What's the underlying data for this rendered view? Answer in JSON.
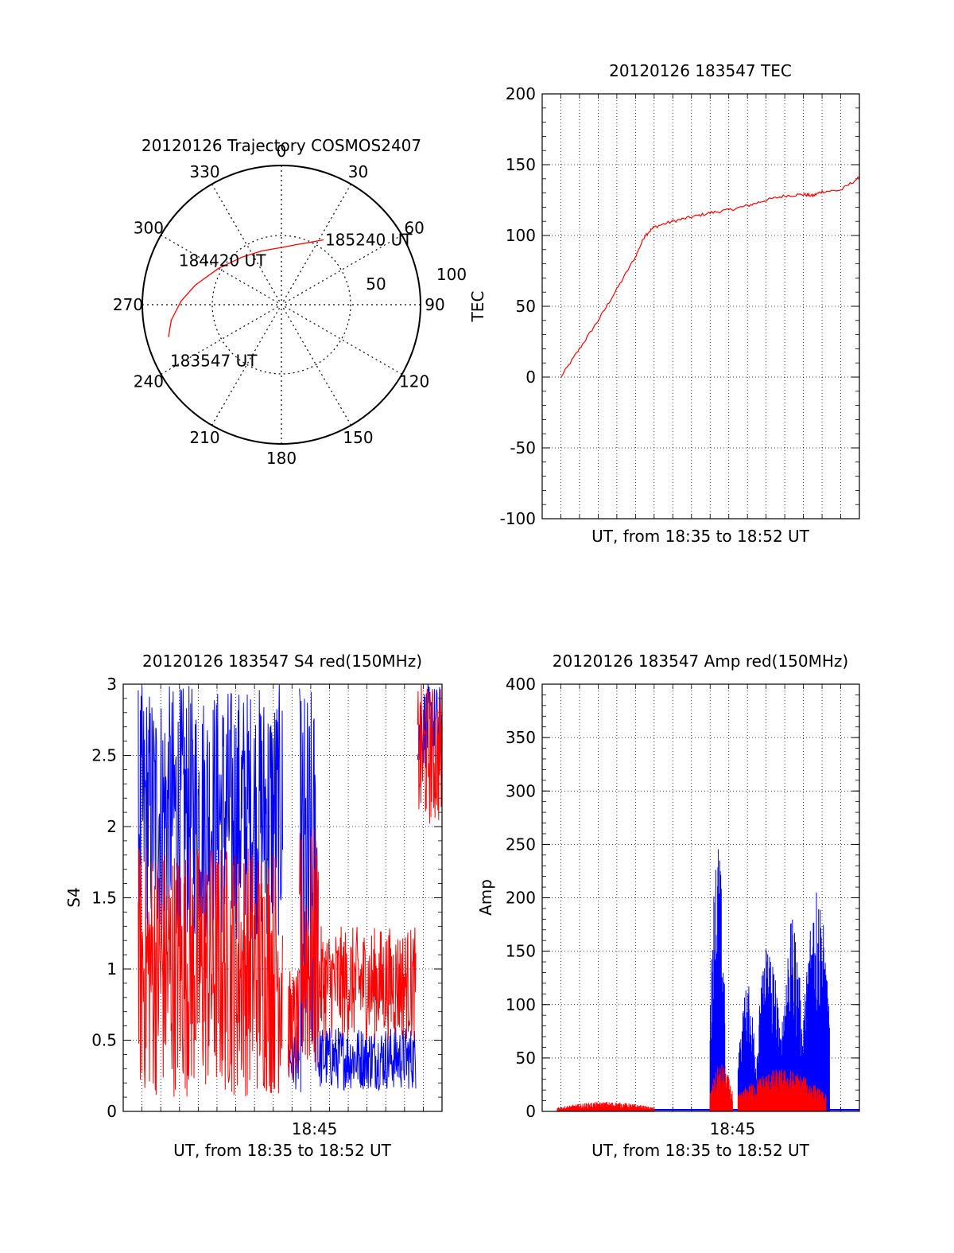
{
  "colors": {
    "series_red": "#ff0000",
    "series_blue": "#0000ff",
    "axis": "#000000",
    "grid": "#000000"
  },
  "chart_data": [
    {
      "type": "polar",
      "title": "20120126 Trajectory COSMOS2407",
      "azimuth_labels": [
        "0",
        "30",
        "60",
        "90",
        "120",
        "150",
        "180",
        "210",
        "240",
        "270",
        "300",
        "330"
      ],
      "radial_labels": [
        "50",
        "100"
      ],
      "trajectory": {
        "points": [
          {
            "azimuth": 254,
            "elevation": 14
          },
          {
            "azimuth": 262,
            "elevation": 18
          },
          {
            "azimuth": 272,
            "elevation": 25
          },
          {
            "azimuth": 283,
            "elevation": 33
          },
          {
            "azimuth": 300,
            "elevation": 43
          },
          {
            "azimuth": 320,
            "elevation": 50
          },
          {
            "azimuth": 340,
            "elevation": 53
          },
          {
            "azimuth": 0,
            "elevation": 53
          },
          {
            "azimuth": 14,
            "elevation": 50
          },
          {
            "azimuth": 24,
            "elevation": 46
          },
          {
            "azimuth": 33,
            "elevation": 40
          }
        ],
        "labels": [
          {
            "text": "183547 UT",
            "at": 0
          },
          {
            "text": "184420 UT",
            "at": 4
          },
          {
            "text": "185240 UT",
            "at": 10
          }
        ]
      }
    },
    {
      "type": "line",
      "title": "20120126 183547 TEC",
      "xlabel": "UT, from 18:35 to 18:52 UT",
      "ylabel": "TEC",
      "ylim": [
        -100,
        200
      ],
      "yticks": [
        "-100",
        "-50",
        "0",
        "50",
        "100",
        "150",
        "200"
      ],
      "xlim": [
        0,
        17.0
      ],
      "grid": true,
      "series": [
        {
          "color": "red",
          "points": [
            [
              1.0,
              0
            ],
            [
              2.0,
              20
            ],
            [
              3.0,
              40
            ],
            [
              4.0,
              62
            ],
            [
              5.0,
              85
            ],
            [
              5.5,
              100
            ],
            [
              6.0,
              106
            ],
            [
              7.0,
              110
            ],
            [
              8.0,
              113
            ],
            [
              9.0,
              116
            ],
            [
              10.0,
              118
            ],
            [
              11.0,
              121
            ],
            [
              12.0,
              125
            ],
            [
              13.0,
              128
            ],
            [
              14.0,
              129
            ],
            [
              14.5,
              128
            ],
            [
              15.0,
              131
            ],
            [
              16.0,
              132
            ],
            [
              17.0,
              141
            ]
          ]
        }
      ]
    },
    {
      "type": "line",
      "title": "20120126 183547 S4 red(150MHz)",
      "xlabel": "UT, from 18:35 to 18:52 UT",
      "ylabel": "S4",
      "ylim": [
        0,
        3
      ],
      "yticks": [
        "0",
        "0.5",
        "1",
        "1.5",
        "2",
        "2.5",
        "3"
      ],
      "xlim": [
        0,
        17.0
      ],
      "xticks": [
        {
          "pos": 10.2,
          "label": "18:45"
        }
      ],
      "grid": true,
      "segments": [
        {
          "x": [
            0.8,
            8.5
          ],
          "red": [
            0.1,
            1.9
          ],
          "blue": [
            1.2,
            3.0
          ]
        },
        {
          "x": [
            8.8,
            9.4
          ],
          "red": [
            0.2,
            1.0
          ],
          "blue": [
            0.15,
            0.6
          ]
        },
        {
          "x": [
            9.4,
            10.4
          ],
          "red": [
            0.2,
            2.0
          ],
          "blue": [
            0.1,
            3.0
          ]
        },
        {
          "x": [
            10.4,
            15.6
          ],
          "red": [
            0.5,
            1.3
          ],
          "blue": [
            0.15,
            0.6
          ]
        },
        {
          "x": [
            15.7,
            17.0
          ],
          "red": [
            2.0,
            3.0
          ],
          "blue": [
            2.4,
            3.0
          ]
        }
      ]
    },
    {
      "type": "line",
      "title": "20120126 183547 Amp red(150MHz)",
      "xlabel": "UT, from 18:35 to 18:52 UT",
      "ylabel": "Amp",
      "ylim": [
        0,
        400
      ],
      "yticks": [
        "0",
        "50",
        "100",
        "150",
        "200",
        "250",
        "300",
        "350",
        "400"
      ],
      "xlim": [
        0,
        17.0
      ],
      "xticks": [
        {
          "pos": 10.2,
          "label": "18:45"
        }
      ],
      "grid": true,
      "red_bursts": [
        {
          "x": [
            0.8,
            6.0
          ],
          "max": 9
        },
        {
          "x": [
            9.0,
            10.2
          ],
          "max": 45
        },
        {
          "x": [
            10.5,
            15.2
          ],
          "max": 40
        }
      ],
      "blue_bursts": [
        {
          "x": [
            9.0,
            9.8
          ],
          "max": 260
        },
        {
          "x": [
            10.5,
            11.5
          ],
          "max": 120
        },
        {
          "x": [
            11.5,
            12.8
          ],
          "max": 165
        },
        {
          "x": [
            12.8,
            14.0
          ],
          "max": 180
        },
        {
          "x": [
            14.0,
            15.4
          ],
          "max": 220
        }
      ]
    }
  ]
}
